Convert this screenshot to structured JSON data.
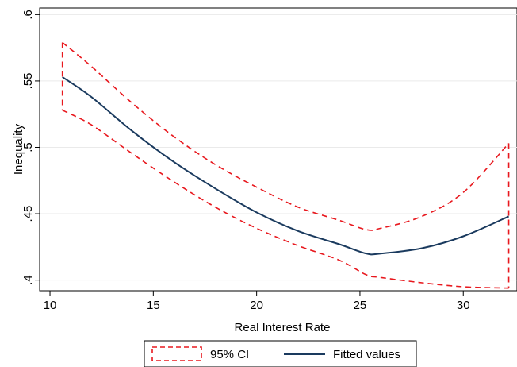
{
  "chart_data": {
    "type": "line",
    "xlabel": "Real Interest Rate",
    "ylabel": "Inequality",
    "xlim": [
      9.5,
      32.6
    ],
    "ylim": [
      0.392,
      0.605
    ],
    "x_ticks": [
      10,
      15,
      20,
      25,
      30
    ],
    "x_tick_labels": [
      "10",
      "15",
      "20",
      "25",
      "30"
    ],
    "y_ticks": [
      0.4,
      0.45,
      0.5,
      0.55,
      0.6
    ],
    "y_tick_labels": [
      ".4",
      ".45",
      ".5",
      ".55",
      ".6"
    ],
    "grid": "horizontal",
    "legend": {
      "placement": "bottom"
    },
    "x": [
      10.6,
      12,
      14,
      16,
      18,
      20,
      22,
      24,
      25.3,
      26,
      28,
      30,
      32.2
    ],
    "series": [
      {
        "name": "95% CI",
        "kind": "band",
        "color": "#e8181e",
        "upper": [
          0.579,
          0.561,
          0.533,
          0.508,
          0.487,
          0.47,
          0.455,
          0.445,
          0.438,
          0.439,
          0.448,
          0.466,
          0.503
        ],
        "lower": [
          0.528,
          0.517,
          0.495,
          0.474,
          0.455,
          0.439,
          0.426,
          0.415,
          0.404,
          0.402,
          0.398,
          0.395,
          0.394
        ]
      },
      {
        "name": "Fitted values",
        "kind": "line",
        "color": "#1a3a5e",
        "values": [
          0.553,
          0.538,
          0.512,
          0.489,
          0.469,
          0.451,
          0.437,
          0.427,
          0.42,
          0.42,
          0.424,
          0.433,
          0.448
        ]
      }
    ]
  }
}
